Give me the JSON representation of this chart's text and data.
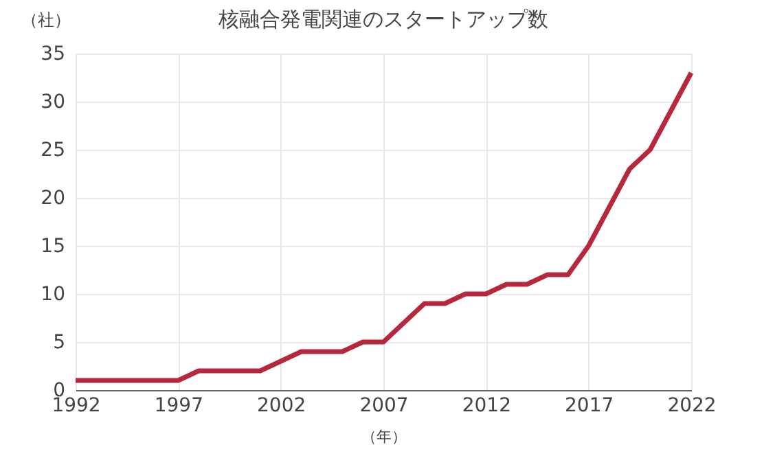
{
  "chart_data": {
    "type": "line",
    "title": "核融合発電関連のスタートアップ数",
    "xlabel": "（年）",
    "ylabel": "（社）",
    "x": [
      1992,
      1993,
      1994,
      1995,
      1996,
      1997,
      1998,
      1999,
      2000,
      2001,
      2002,
      2003,
      2004,
      2005,
      2006,
      2007,
      2008,
      2009,
      2010,
      2011,
      2012,
      2013,
      2014,
      2015,
      2016,
      2017,
      2018,
      2019,
      2020,
      2021,
      2022
    ],
    "series": [
      {
        "color": "#b5283e",
        "values": [
          1,
          1,
          1,
          1,
          1,
          1,
          2,
          2,
          2,
          2,
          3,
          4,
          4,
          4,
          5,
          5,
          7,
          9,
          9,
          10,
          10,
          11,
          11,
          12,
          12,
          15,
          19,
          23,
          25,
          29,
          33
        ]
      }
    ],
    "xlim": [
      1992,
      2022
    ],
    "xticks": [
      1992,
      1997,
      2002,
      2007,
      2012,
      2017,
      2022
    ],
    "ylim": [
      0,
      35
    ],
    "yticks": [
      0,
      5,
      10,
      15,
      20,
      25,
      30,
      35
    ],
    "grid": true,
    "marker": "none",
    "line_style": "solid"
  }
}
